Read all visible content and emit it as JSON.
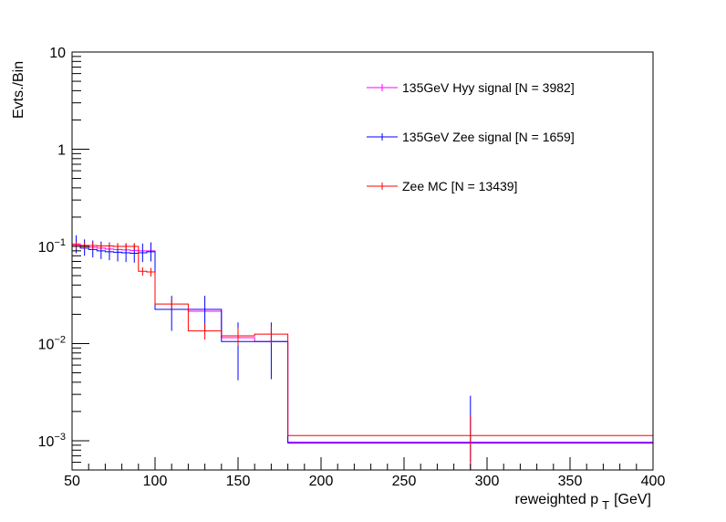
{
  "chart_data": {
    "type": "histogram",
    "title": "",
    "xlabel": "reweighted p",
    "xlabel_sub": "T",
    "xlabel_unit": "[GeV]",
    "ylabel": "Evts./Bin",
    "xlim": [
      50,
      400
    ],
    "ylim": [
      0.0005,
      10
    ],
    "yscale": "log",
    "x_ticks": [
      50,
      100,
      150,
      200,
      250,
      300,
      350,
      400
    ],
    "x_tick_labels": [
      "50",
      "100",
      "150",
      "200",
      "250",
      "300",
      "350",
      "400"
    ],
    "y_ticks": [
      {
        "value": 10,
        "label": "10"
      },
      {
        "value": 1,
        "label": "1"
      },
      {
        "value": 0.1,
        "base": "10",
        "exp": "−1"
      },
      {
        "value": 0.01,
        "base": "10",
        "exp": "−2"
      },
      {
        "value": 0.001,
        "base": "10",
        "exp": "−3"
      }
    ],
    "bin_edges": [
      50,
      55,
      60,
      65,
      70,
      75,
      80,
      85,
      90,
      95,
      100,
      120,
      140,
      160,
      180,
      400
    ],
    "legend_position": "top-right",
    "series": [
      {
        "name": "135GeV Hyy signal [N = 3982]",
        "color": "#ff00ff",
        "values": [
          0.106,
          0.101,
          0.098,
          0.096,
          0.094,
          0.093,
          0.092,
          0.091,
          0.09,
          0.09,
          0.0225,
          0.0215,
          0.0115,
          0.0105,
          0.00097
        ],
        "errors": []
      },
      {
        "name": "135GeV Zee signal [N = 1659]",
        "color": "#0000ff",
        "values": [
          0.1,
          0.096,
          0.093,
          0.09,
          0.088,
          0.087,
          0.086,
          0.085,
          0.086,
          0.088,
          0.0225,
          0.0225,
          0.0105,
          0.0105,
          0.00095
        ],
        "errors": [
          {
            "x": 52.5,
            "lo": 0.085,
            "hi": 0.13
          },
          {
            "x": 57.5,
            "lo": 0.08,
            "hi": 0.118
          },
          {
            "x": 62.5,
            "lo": 0.077,
            "hi": 0.115
          },
          {
            "x": 67.5,
            "lo": 0.074,
            "hi": 0.112
          },
          {
            "x": 72.5,
            "lo": 0.072,
            "hi": 0.11
          },
          {
            "x": 77.5,
            "lo": 0.07,
            "hi": 0.108
          },
          {
            "x": 82.5,
            "lo": 0.069,
            "hi": 0.107
          },
          {
            "x": 87.5,
            "lo": 0.068,
            "hi": 0.106
          },
          {
            "x": 92.5,
            "lo": 0.069,
            "hi": 0.107
          },
          {
            "x": 97.5,
            "lo": 0.07,
            "hi": 0.11
          },
          {
            "x": 110,
            "lo": 0.0135,
            "hi": 0.031
          },
          {
            "x": 130,
            "lo": 0.0135,
            "hi": 0.031
          },
          {
            "x": 150,
            "lo": 0.0042,
            "hi": 0.0165
          },
          {
            "x": 170,
            "lo": 0.0043,
            "hi": 0.0165
          },
          {
            "x": 290,
            "lo": 0.0006,
            "hi": 0.0029
          }
        ]
      },
      {
        "name": "Zee MC [N = 13439]",
        "color": "#ff0000",
        "values": [
          0.103,
          0.102,
          0.102,
          0.101,
          0.101,
          0.1,
          0.1,
          0.1,
          0.0555,
          0.0545,
          0.0255,
          0.0135,
          0.012,
          0.0125,
          0.00113
        ],
        "errors": [
          {
            "x": 52.5,
            "lo": 0.095,
            "hi": 0.111
          },
          {
            "x": 57.5,
            "lo": 0.095,
            "hi": 0.11
          },
          {
            "x": 62.5,
            "lo": 0.094,
            "hi": 0.11
          },
          {
            "x": 67.5,
            "lo": 0.094,
            "hi": 0.109
          },
          {
            "x": 72.5,
            "lo": 0.094,
            "hi": 0.109
          },
          {
            "x": 77.5,
            "lo": 0.093,
            "hi": 0.108
          },
          {
            "x": 82.5,
            "lo": 0.093,
            "hi": 0.108
          },
          {
            "x": 87.5,
            "lo": 0.093,
            "hi": 0.108
          },
          {
            "x": 92.5,
            "lo": 0.05,
            "hi": 0.061
          },
          {
            "x": 97.5,
            "lo": 0.049,
            "hi": 0.06
          },
          {
            "x": 110,
            "lo": 0.0225,
            "hi": 0.0285
          },
          {
            "x": 130,
            "lo": 0.011,
            "hi": 0.016
          },
          {
            "x": 150,
            "lo": 0.0095,
            "hi": 0.0145
          },
          {
            "x": 170,
            "lo": 0.01,
            "hi": 0.015
          },
          {
            "x": 290,
            "lo": 0.0005,
            "hi": 0.0018
          }
        ]
      }
    ]
  }
}
